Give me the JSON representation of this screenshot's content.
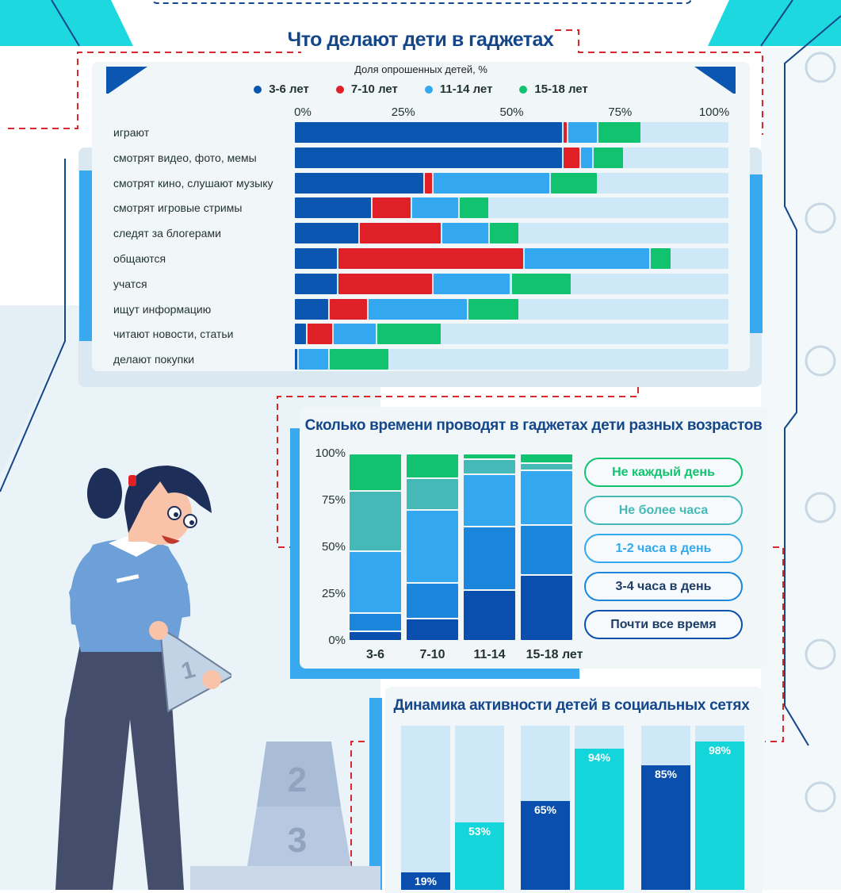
{
  "colors": {
    "dark_blue": "#0a56b0",
    "red": "#e02027",
    "light_blue": "#33a8f0",
    "green": "#11c36e",
    "teal": "#45b9b8",
    "mid_blue": "#1c86dd",
    "navy": "#0a4fae",
    "cyan": "#14d5d9",
    "track": "#cfe8f8",
    "title": "#14478a"
  },
  "icons": [
    "person-illustration",
    "podium-illustration",
    "logo-watermark"
  ],
  "chart_data": [
    {
      "type": "bar",
      "orientation": "horizontal",
      "stacked": true,
      "title": "Что делают дети в гаджетах",
      "subtitle": "Доля опрошенных детей, %",
      "xlim": [
        0,
        100
      ],
      "x_ticks": [
        "0%",
        "25%",
        "50%",
        "75%",
        "100%"
      ],
      "legend_position": "top",
      "categories": [
        "играют",
        "смотрят видео, фото, мемы",
        "смотрят кино, слушают музыку",
        "смотрят игровые стримы",
        "следят за блогерами",
        "общаются",
        "учатся",
        "ищут информацию",
        "читают новости, статьи",
        "делают покупки"
      ],
      "series": [
        {
          "name": "3-6 лет",
          "color": "#0a56b0",
          "values": [
            62,
            62,
            30,
            18,
            15,
            10,
            10,
            8,
            3,
            1
          ]
        },
        {
          "name": "7-10 лет",
          "color": "#e02027",
          "values": [
            1,
            4,
            2,
            9,
            19,
            43,
            22,
            9,
            6,
            0
          ]
        },
        {
          "name": "11-14 лет",
          "color": "#33a8f0",
          "values": [
            7,
            3,
            27,
            11,
            11,
            29,
            18,
            23,
            10,
            7
          ]
        },
        {
          "name": "15-18 лет",
          "color": "#11c36e",
          "values": [
            10,
            7,
            11,
            7,
            7,
            5,
            14,
            12,
            15,
            14
          ]
        }
      ]
    },
    {
      "type": "bar",
      "stacked": true,
      "title": "Сколько времени проводят в гаджетах дети разных возрастов",
      "ylim": [
        0,
        100
      ],
      "y_ticks": [
        "100%",
        "75%",
        "50%",
        "25%",
        "0%"
      ],
      "categories": [
        "3-6",
        "7-10",
        "11-14",
        "15-18 лет"
      ],
      "legend_position": "right",
      "series": [
        {
          "name": "Почти все время",
          "color": "#0a4fae",
          "values": [
            5,
            12,
            27,
            35
          ]
        },
        {
          "name": "3-4 часа в день",
          "color": "#1c86dd",
          "values": [
            10,
            19,
            34,
            27
          ]
        },
        {
          "name": "1-2 часа в день",
          "color": "#33a8f0",
          "values": [
            33,
            39,
            28,
            29
          ]
        },
        {
          "name": "Не более часа",
          "color": "#45b9b8",
          "values": [
            32,
            17,
            8,
            4
          ]
        },
        {
          "name": "Не каждый день",
          "color": "#11c36e",
          "values": [
            20,
            13,
            3,
            5
          ]
        }
      ]
    },
    {
      "type": "bar",
      "title": "Динамика активности детей в социальных сетях",
      "ylim": [
        0,
        100
      ],
      "values": [
        19,
        53,
        65,
        94,
        85,
        98
      ],
      "value_labels": [
        "19%",
        "53%",
        "65%",
        "94%",
        "85%",
        "98%"
      ],
      "colors": [
        "#0a4fae",
        "#14d5d9",
        "#0a4fae",
        "#14d5d9",
        "#0a4fae",
        "#14d5d9"
      ]
    }
  ]
}
